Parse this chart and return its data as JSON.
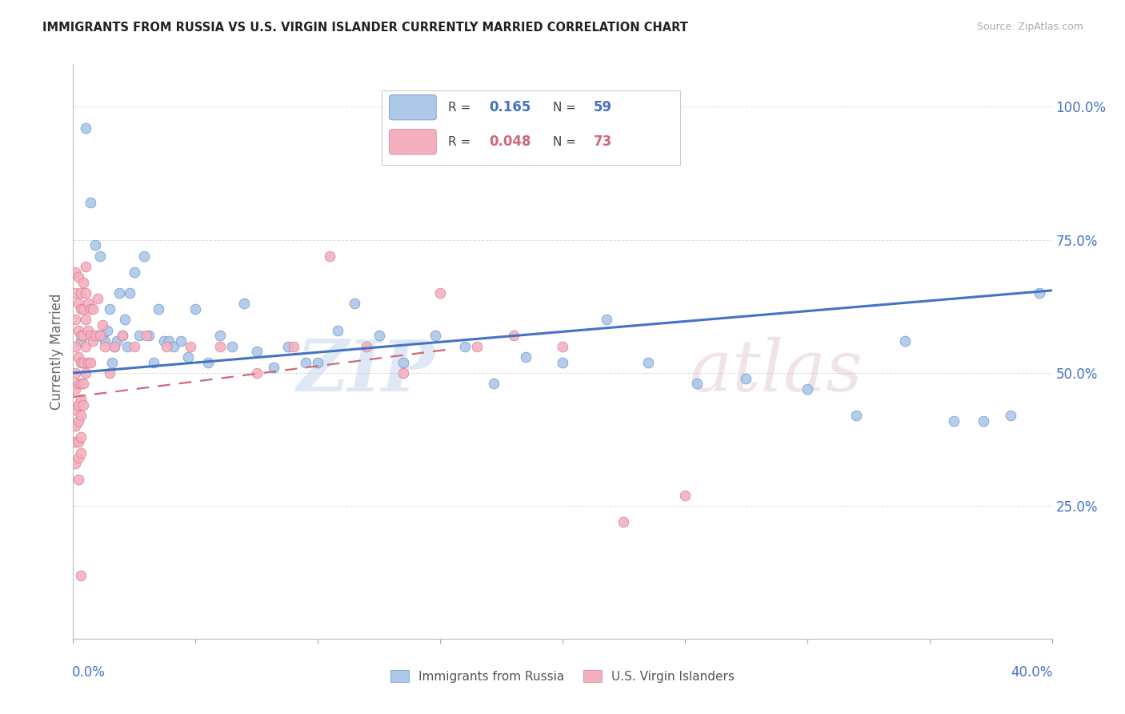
{
  "title": "IMMIGRANTS FROM RUSSIA VS U.S. VIRGIN ISLANDER CURRENTLY MARRIED CORRELATION CHART",
  "source": "Source: ZipAtlas.com",
  "ylabel": "Currently Married",
  "y_ticks": [
    0.0,
    0.25,
    0.5,
    0.75,
    1.0
  ],
  "y_tick_labels": [
    "",
    "25.0%",
    "50.0%",
    "75.0%",
    "100.0%"
  ],
  "x_lim": [
    0.0,
    0.4
  ],
  "y_lim": [
    0.0,
    1.08
  ],
  "R_blue": 0.165,
  "N_blue": 59,
  "R_pink": 0.048,
  "N_pink": 73,
  "blue_color": "#adc8e8",
  "blue_edge": "#5b8fc7",
  "pink_color": "#f5b0c0",
  "pink_edge": "#d07888",
  "trendline_blue_color": "#4472c4",
  "trendline_pink_color": "#d06878",
  "blue_trend_x0": 0.0,
  "blue_trend_y0": 0.5,
  "blue_trend_x1": 0.4,
  "blue_trend_y1": 0.655,
  "pink_trend_x0": 0.0,
  "pink_trend_y0": 0.455,
  "pink_trend_x1": 0.155,
  "pink_trend_y1": 0.545,
  "blue_scatter_x": [
    0.003,
    0.005,
    0.007,
    0.009,
    0.01,
    0.011,
    0.012,
    0.013,
    0.014,
    0.015,
    0.016,
    0.017,
    0.018,
    0.019,
    0.02,
    0.021,
    0.022,
    0.023,
    0.025,
    0.027,
    0.029,
    0.031,
    0.033,
    0.035,
    0.037,
    0.039,
    0.041,
    0.044,
    0.047,
    0.05,
    0.055,
    0.06,
    0.065,
    0.07,
    0.075,
    0.082,
    0.088,
    0.095,
    0.1,
    0.108,
    0.115,
    0.125,
    0.135,
    0.148,
    0.16,
    0.172,
    0.185,
    0.2,
    0.218,
    0.235,
    0.255,
    0.275,
    0.3,
    0.32,
    0.34,
    0.36,
    0.372,
    0.383,
    0.395
  ],
  "blue_scatter_y": [
    0.56,
    0.96,
    0.82,
    0.74,
    0.57,
    0.72,
    0.57,
    0.56,
    0.58,
    0.62,
    0.52,
    0.55,
    0.56,
    0.65,
    0.57,
    0.6,
    0.55,
    0.65,
    0.69,
    0.57,
    0.72,
    0.57,
    0.52,
    0.62,
    0.56,
    0.56,
    0.55,
    0.56,
    0.53,
    0.62,
    0.52,
    0.57,
    0.55,
    0.63,
    0.54,
    0.51,
    0.55,
    0.52,
    0.52,
    0.58,
    0.63,
    0.57,
    0.52,
    0.57,
    0.55,
    0.48,
    0.53,
    0.52,
    0.6,
    0.52,
    0.48,
    0.49,
    0.47,
    0.42,
    0.56,
    0.41,
    0.41,
    0.42,
    0.65
  ],
  "pink_scatter_x": [
    0.001,
    0.001,
    0.001,
    0.001,
    0.001,
    0.001,
    0.001,
    0.001,
    0.001,
    0.001,
    0.002,
    0.002,
    0.002,
    0.002,
    0.002,
    0.002,
    0.002,
    0.002,
    0.002,
    0.002,
    0.003,
    0.003,
    0.003,
    0.003,
    0.003,
    0.003,
    0.003,
    0.003,
    0.003,
    0.003,
    0.004,
    0.004,
    0.004,
    0.004,
    0.004,
    0.004,
    0.005,
    0.005,
    0.005,
    0.005,
    0.005,
    0.006,
    0.006,
    0.006,
    0.007,
    0.007,
    0.007,
    0.008,
    0.008,
    0.009,
    0.01,
    0.011,
    0.012,
    0.013,
    0.015,
    0.017,
    0.02,
    0.025,
    0.03,
    0.038,
    0.048,
    0.06,
    0.075,
    0.09,
    0.105,
    0.12,
    0.135,
    0.15,
    0.165,
    0.18,
    0.2,
    0.225,
    0.25
  ],
  "pink_scatter_y": [
    0.69,
    0.65,
    0.6,
    0.55,
    0.5,
    0.47,
    0.43,
    0.4,
    0.37,
    0.33,
    0.68,
    0.63,
    0.58,
    0.53,
    0.48,
    0.44,
    0.41,
    0.37,
    0.34,
    0.3,
    0.65,
    0.62,
    0.57,
    0.52,
    0.48,
    0.45,
    0.42,
    0.38,
    0.35,
    0.12,
    0.67,
    0.62,
    0.57,
    0.52,
    0.48,
    0.44,
    0.7,
    0.65,
    0.6,
    0.55,
    0.5,
    0.63,
    0.58,
    0.52,
    0.62,
    0.57,
    0.52,
    0.62,
    0.56,
    0.57,
    0.64,
    0.57,
    0.59,
    0.55,
    0.5,
    0.55,
    0.57,
    0.55,
    0.57,
    0.55,
    0.55,
    0.55,
    0.5,
    0.55,
    0.72,
    0.55,
    0.5,
    0.65,
    0.55,
    0.57,
    0.55,
    0.22,
    0.27
  ]
}
